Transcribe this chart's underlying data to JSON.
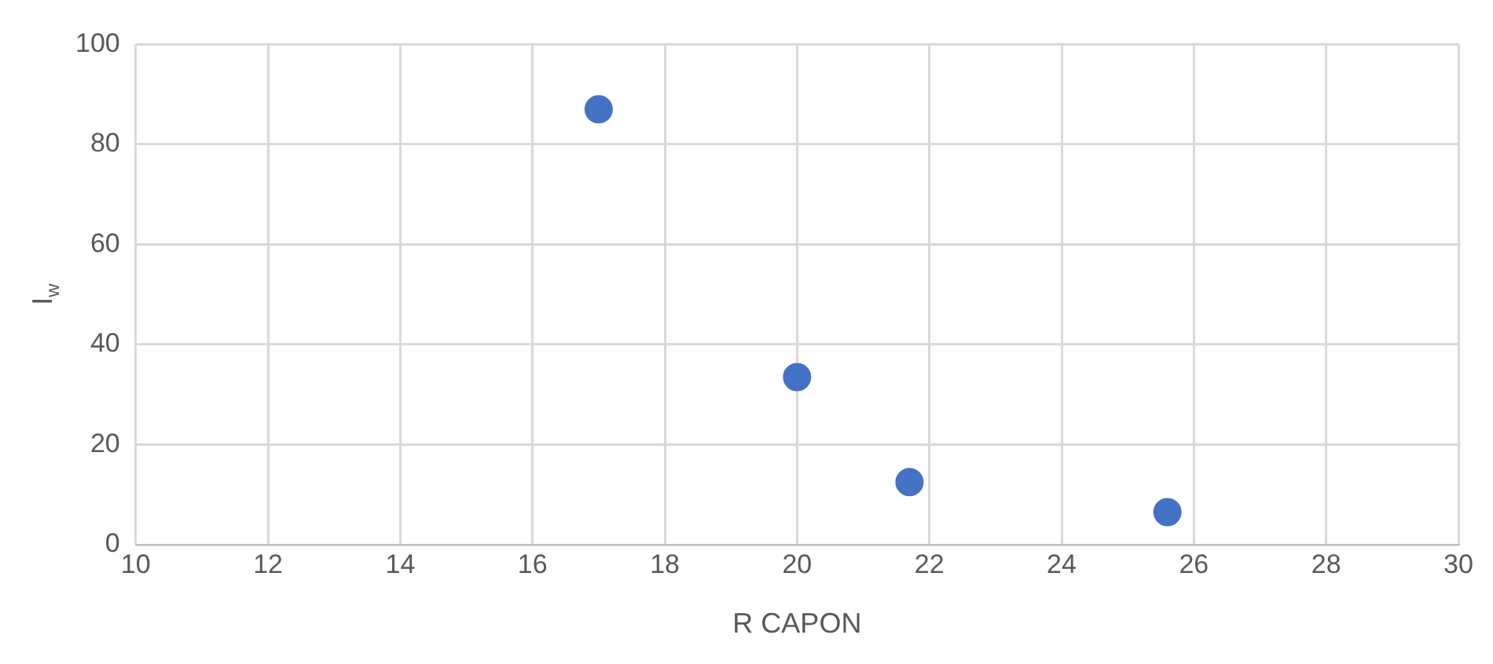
{
  "chart_data": {
    "type": "scatter",
    "xlabel": "R CAPON",
    "ylabel": "I$_{w}$",
    "series": [
      {
        "color": "#4472c4",
        "x": [
          17.0,
          20.0,
          21.7,
          25.6
        ],
        "values": [
          87,
          33.5,
          12.5,
          6.5
        ]
      }
    ],
    "xlim": [
      10,
      30
    ],
    "xticks": [
      10,
      12,
      14,
      16,
      18,
      20,
      22,
      24,
      26,
      28,
      30
    ],
    "ylim": [
      0,
      100
    ],
    "yticks": [
      0,
      20,
      40,
      60,
      80,
      100
    ],
    "grid": true,
    "legend": false,
    "marker": "circle"
  }
}
